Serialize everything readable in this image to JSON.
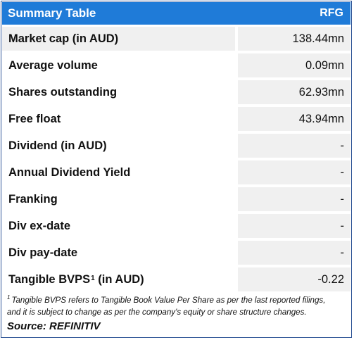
{
  "header": {
    "title": "Summary Table",
    "ticker": "RFG"
  },
  "rows": [
    {
      "label": "Market cap (in AUD)",
      "value": "138.44mn"
    },
    {
      "label": "Average volume",
      "value": "0.09mn"
    },
    {
      "label": "Shares outstanding",
      "value": "62.93mn"
    },
    {
      "label": "Free float",
      "value": "43.94mn"
    },
    {
      "label": "Dividend (in AUD)",
      "value": "-"
    },
    {
      "label": "Annual Dividend Yield",
      "value": "-"
    },
    {
      "label": "Franking",
      "value": "-"
    },
    {
      "label": "Div ex-date",
      "value": "-"
    },
    {
      "label": "Div pay-date",
      "value": "-"
    },
    {
      "label": "Tangible BVPS",
      "label_sup": "1",
      "label_suffix": " (in AUD)",
      "value": "-0.22"
    }
  ],
  "footnote": {
    "marker": "1",
    "line1": "Tangible BVPS refers to Tangible Book Value Per Share as per the last reported filings,",
    "line2": "and it is subject to change as per the company's equity or share structure changes."
  },
  "source": "Source: REFINITIV",
  "colors": {
    "header_bg": "#1f7bd8",
    "cell_bg": "#f0f0f0",
    "border": "#2f5597"
  }
}
